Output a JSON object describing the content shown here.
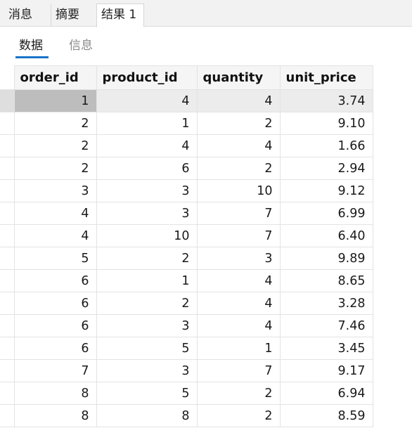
{
  "tabs": [
    {
      "label": "消息"
    },
    {
      "label": "摘要"
    },
    {
      "label": "结果 1"
    }
  ],
  "subtabs": [
    {
      "label": "数据"
    },
    {
      "label": "信息"
    }
  ],
  "table": {
    "columns": [
      "order_id",
      "product_id",
      "quantity",
      "unit_price"
    ],
    "rows": [
      [
        "1",
        "4",
        "4",
        "3.74"
      ],
      [
        "2",
        "1",
        "2",
        "9.10"
      ],
      [
        "2",
        "4",
        "4",
        "1.66"
      ],
      [
        "2",
        "6",
        "2",
        "2.94"
      ],
      [
        "3",
        "3",
        "10",
        "9.12"
      ],
      [
        "4",
        "3",
        "7",
        "6.99"
      ],
      [
        "4",
        "10",
        "7",
        "6.40"
      ],
      [
        "5",
        "2",
        "3",
        "9.89"
      ],
      [
        "6",
        "1",
        "4",
        "8.65"
      ],
      [
        "6",
        "2",
        "4",
        "3.28"
      ],
      [
        "6",
        "3",
        "4",
        "7.46"
      ],
      [
        "6",
        "5",
        "1",
        "3.45"
      ],
      [
        "7",
        "3",
        "7",
        "9.17"
      ],
      [
        "8",
        "5",
        "2",
        "6.94"
      ],
      [
        "8",
        "8",
        "2",
        "8.59"
      ]
    ]
  },
  "colors": {
    "accent": "#1a73c9",
    "selected_row": "#ececec",
    "selected_cell": "#bdbdbd"
  }
}
